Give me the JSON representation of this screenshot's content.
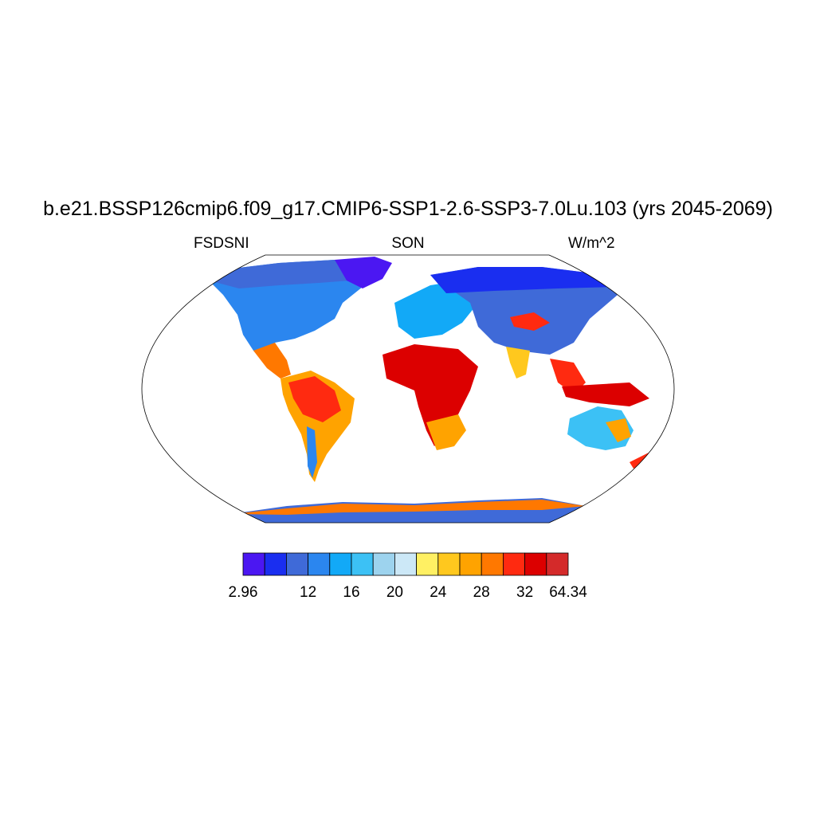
{
  "title": "b.e21.BSSP126cmip6.f09_g17.CMIP6-SSP1-2.6-SSP3-7.0Lu.103 (yrs 2045-2069)",
  "left_string": "FSDSNI",
  "center_string": "SON",
  "right_string": "W/m^2",
  "colorbar": {
    "colors": [
      "#4b17f2",
      "#1a2ef0",
      "#3f6ad8",
      "#2b86ef",
      "#12a9f7",
      "#3cc1f5",
      "#9dd3ee",
      "#cce8f7",
      "#fff063",
      "#ffc81e",
      "#ffa300",
      "#ff7800",
      "#ff2a10",
      "#dc0000",
      "#d42a2a"
    ],
    "labels": [
      {
        "index": 0,
        "text": "2.96"
      },
      {
        "index": 3,
        "text": "12"
      },
      {
        "index": 5,
        "text": "16"
      },
      {
        "index": 7,
        "text": "20"
      },
      {
        "index": 9,
        "text": "24"
      },
      {
        "index": 11,
        "text": "28"
      },
      {
        "index": 13,
        "text": "32"
      },
      {
        "index": 15,
        "text": "64.34"
      }
    ]
  }
}
